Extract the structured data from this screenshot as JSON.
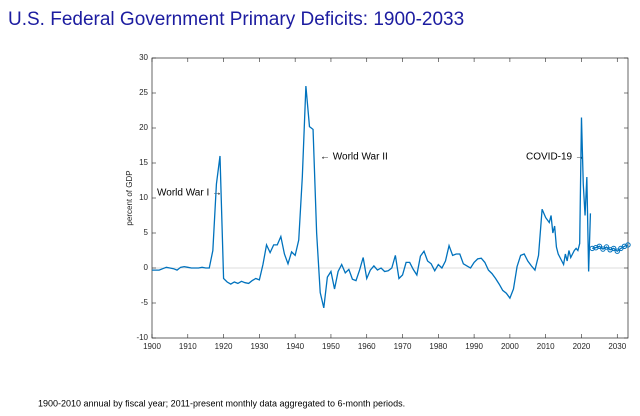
{
  "chart_data": {
    "type": "line",
    "title": "U.S. Federal Government Primary Deficits: 1900-2033",
    "y_label": "percent of GDP",
    "note": "1900-2010 annual by fiscal year; 2011-present monthly data aggregated to 6-month periods.",
    "annotations": [
      "World War I →",
      "← World War II",
      "COVID-19 →"
    ],
    "xlim": [
      1900,
      2033
    ],
    "ylim": [
      -10,
      30
    ],
    "xticks": [
      1900,
      1910,
      1920,
      1930,
      1940,
      1950,
      1960,
      1970,
      1980,
      1990,
      2000,
      2010,
      2020,
      2030
    ],
    "yticks": [
      -10,
      -5,
      0,
      5,
      10,
      15,
      20,
      25,
      30
    ],
    "series": [
      {
        "color": "#0072bd",
        "markers": false,
        "x": [
          1900,
          1901,
          1902,
          1903,
          1904,
          1905,
          1906,
          1907,
          1908,
          1909,
          1910,
          1911,
          1912,
          1913,
          1914,
          1915,
          1916,
          1917,
          1918,
          1919,
          1920,
          1921,
          1922,
          1923,
          1924,
          1925,
          1926,
          1927,
          1928,
          1929,
          1930,
          1931,
          1932,
          1933,
          1934,
          1935,
          1936,
          1937,
          1938,
          1939,
          1940,
          1941,
          1942,
          1943,
          1944,
          1945,
          1946,
          1947,
          1948,
          1949,
          1950,
          1951,
          1952,
          1953,
          1954,
          1955,
          1956,
          1957,
          1958,
          1959,
          1960,
          1961,
          1962,
          1963,
          1964,
          1965,
          1966,
          1967,
          1968,
          1969,
          1970,
          1971,
          1972,
          1973,
          1974,
          1975,
          1976,
          1977,
          1978,
          1979,
          1980,
          1981,
          1982,
          1983,
          1984,
          1985,
          1986,
          1987,
          1988,
          1989,
          1990,
          1991,
          1992,
          1993,
          1994,
          1995,
          1996,
          1997,
          1998,
          1999,
          2000,
          2001,
          2002,
          2003,
          2004,
          2005,
          2006,
          2007,
          2008,
          2009,
          2010,
          2011,
          2011.5,
          2012,
          2012.5,
          2013,
          2013.5,
          2014,
          2014.5,
          2015,
          2015.5,
          2016,
          2016.5,
          2017,
          2017.5,
          2018,
          2018.5,
          2019,
          2019.5,
          2020,
          2020.5,
          2021,
          2021.5,
          2022,
          2022.5
        ],
        "values": [
          -0.3,
          -0.3,
          -0.3,
          -0.1,
          0.1,
          0,
          -0.1,
          -0.3,
          0.1,
          0.2,
          0.1,
          0,
          0,
          0,
          0.1,
          0,
          0,
          2.5,
          12,
          16,
          -1.5,
          -2,
          -2.3,
          -2,
          -2.2,
          -1.9,
          -2.1,
          -2.2,
          -1.8,
          -1.5,
          -1.7,
          0.5,
          3.3,
          2.2,
          3.3,
          3.3,
          4.5,
          2,
          0.6,
          2.3,
          1.8,
          4,
          13,
          26,
          20.2,
          19.8,
          5,
          -3.5,
          -5.7,
          -1.3,
          -0.5,
          -3,
          -0.5,
          0.5,
          -0.7,
          -0.2,
          -1.6,
          -1.8,
          -0.3,
          1.5,
          -1.5,
          -0.3,
          0.3,
          -0.3,
          0,
          -0.5,
          -0.4,
          0,
          1.8,
          -1.5,
          -1,
          0.8,
          0.8,
          -0.2,
          -1,
          1.7,
          2.4,
          1,
          0.6,
          -0.4,
          0.5,
          0,
          1,
          3.2,
          1.8,
          2,
          2,
          0.6,
          0.3,
          0,
          0.8,
          1.3,
          1.4,
          0.8,
          -0.3,
          -0.8,
          -1.5,
          -2.3,
          -3.2,
          -3.6,
          -4.3,
          -3,
          0.2,
          1.8,
          2,
          1,
          0.3,
          -0.3,
          1.8,
          8.4,
          7.2,
          6.5,
          7.5,
          5,
          6,
          3,
          2,
          1.5,
          1,
          0.5,
          2,
          1,
          2.5,
          1.5,
          2,
          2.5,
          2.8,
          2.5,
          3.5,
          21.5,
          12,
          7.5,
          13,
          -0.5,
          7.8
        ]
      },
      {
        "color": "#0072bd",
        "markers": true,
        "x": [
          2023,
          2024,
          2025,
          2026,
          2027,
          2028,
          2029,
          2030,
          2031,
          2032,
          2033
        ],
        "values": [
          2.8,
          2.9,
          3.1,
          2.7,
          3.0,
          2.6,
          2.8,
          2.4,
          2.8,
          3.1,
          3.3
        ]
      }
    ]
  }
}
